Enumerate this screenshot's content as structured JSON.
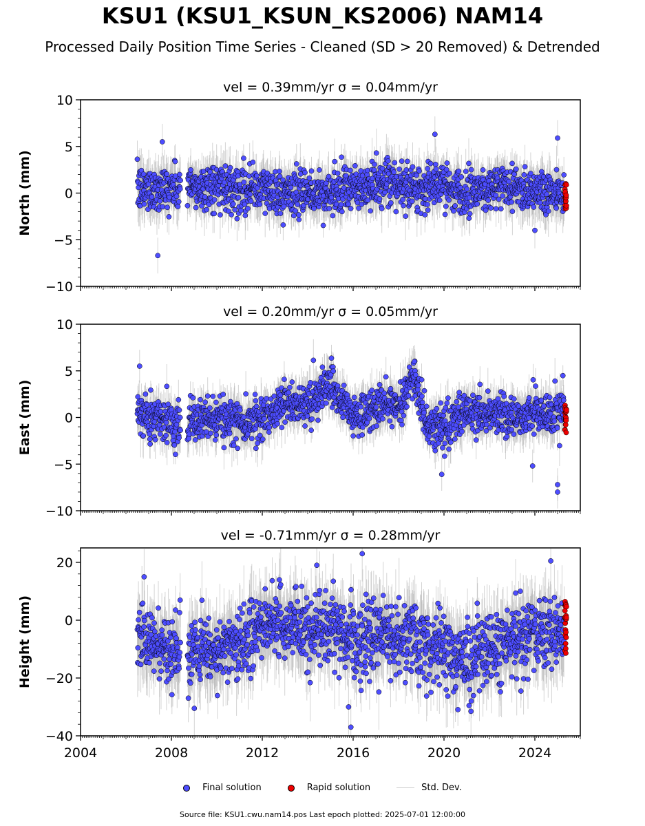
{
  "title": "KSU1 (KSU1_KSUN_KS2006) NAM14",
  "subtitle": "Processed Daily Position Time Series - Cleaned (SD > 20 Removed) & Detrended",
  "legend": {
    "final_label": "Final solution",
    "rapid_label": "Rapid solution",
    "std_label": "Std. Dev."
  },
  "footer": "Source file: KSU1.cwu.nam14.pos  Last epoch plotted: 2025-07-01 12:00:00",
  "colors": {
    "final": "#4d4dff",
    "rapid": "#ee0000",
    "std_dev": "#b0b0b0",
    "edge": "#000000"
  },
  "chart_data": [
    {
      "type": "scatter",
      "title": "vel = 0.39mm/yr   σ = 0.04mm/yr",
      "ylabel": "North (mm)",
      "xlabel": "",
      "xlim": [
        2004,
        2026
      ],
      "ylim": [
        -10,
        10
      ],
      "yticks": [
        -10,
        -5,
        0,
        5,
        10
      ],
      "xticks": [
        2004,
        2008,
        2012,
        2016,
        2020,
        2024
      ],
      "xtick_labels_shown": false,
      "data_span": [
        2006.5,
        2025.5
      ],
      "gap": [
        2008.4,
        2008.7
      ],
      "rapid_span": [
        2025.3,
        2025.5
      ],
      "series": [
        {
          "name": "Final solution",
          "trend_x": [
            2006.5,
            2007.5,
            2008.3,
            2009,
            2010,
            2011,
            2012,
            2013,
            2014,
            2015,
            2016,
            2017,
            2018,
            2019,
            2020,
            2021,
            2022,
            2023,
            2024,
            2025.3
          ],
          "trend_y": [
            0.3,
            0.6,
            0.5,
            0.5,
            0.8,
            0.6,
            0.4,
            0.0,
            -0.2,
            0.0,
            0.5,
            0.8,
            0.9,
            0.6,
            0.8,
            0.2,
            0.6,
            0.7,
            0.4,
            0.0
          ],
          "scatter_sd": 1.2,
          "outliers": [
            [
              2007.4,
              -6.7
            ],
            [
              2007.6,
              5.5
            ],
            [
              2019.6,
              6.3
            ],
            [
              2025.0,
              5.9
            ],
            [
              2024.0,
              -4.0
            ]
          ]
        },
        {
          "name": "Rapid solution",
          "x_range": [
            2025.3,
            2025.5
          ],
          "y_range": [
            -1.8,
            1.0
          ]
        }
      ]
    },
    {
      "type": "scatter",
      "title": "vel = 0.20mm/yr   σ = 0.05mm/yr",
      "ylabel": "East (mm)",
      "xlabel": "",
      "xlim": [
        2004,
        2026
      ],
      "ylim": [
        -10,
        10
      ],
      "yticks": [
        -10,
        -5,
        0,
        5,
        10
      ],
      "xticks": [
        2004,
        2008,
        2012,
        2016,
        2020,
        2024
      ],
      "xtick_labels_shown": false,
      "data_span": [
        2006.5,
        2025.5
      ],
      "gap": [
        2008.4,
        2008.7
      ],
      "rapid_span": [
        2025.3,
        2025.5
      ],
      "series": [
        {
          "name": "Final solution",
          "trend_x": [
            2006.5,
            2007.5,
            2008.3,
            2009,
            2010,
            2011,
            2012,
            2013,
            2014,
            2015,
            2015.7,
            2016,
            2017,
            2018,
            2018.7,
            2019.2,
            2020,
            2021,
            2022,
            2023,
            2024,
            2025.3
          ],
          "trend_y": [
            0.5,
            0.0,
            -0.5,
            -0.5,
            -0.2,
            -0.5,
            0.0,
            1.5,
            1.5,
            3.5,
            1.0,
            0.0,
            1.0,
            1.5,
            4.5,
            -1.0,
            -1.0,
            0.5,
            0.5,
            0.0,
            0.5,
            0.5
          ],
          "scatter_sd": 1.1,
          "outliers": [
            [
              2006.6,
              5.5
            ],
            [
              2018.7,
              6.0
            ],
            [
              2025.0,
              -8.0
            ],
            [
              2025.0,
              -7.2
            ],
            [
              2019.9,
              -6.1
            ],
            [
              2023.9,
              -5.2
            ]
          ]
        },
        {
          "name": "Rapid solution",
          "x_range": [
            2025.3,
            2025.5
          ],
          "y_range": [
            -1.8,
            1.4
          ]
        }
      ]
    },
    {
      "type": "scatter",
      "title": "vel = -0.71mm/yr   σ = 0.28mm/yr",
      "ylabel": "Height (mm)",
      "xlabel": "",
      "xlim": [
        2004,
        2026
      ],
      "ylim": [
        -40,
        25
      ],
      "yticks": [
        -40,
        -20,
        0,
        20
      ],
      "xticks": [
        2004,
        2008,
        2012,
        2016,
        2020,
        2024
      ],
      "xtick_labels": [
        "2004",
        "2008",
        "2012",
        "2016",
        "2020",
        "2024"
      ],
      "xtick_labels_shown": true,
      "data_span": [
        2006.5,
        2025.5
      ],
      "gap": [
        2008.4,
        2008.7
      ],
      "rapid_span": [
        2025.3,
        2025.5
      ],
      "series": [
        {
          "name": "Final solution",
          "trend_x": [
            2006.5,
            2007.5,
            2008.3,
            2009,
            2010,
            2011,
            2012,
            2013,
            2014,
            2015,
            2016,
            2017,
            2018,
            2019,
            2020,
            2021,
            2022,
            2023,
            2024,
            2025.3
          ],
          "trend_y": [
            -5,
            -10,
            -12,
            -12,
            -10,
            -8,
            -3,
            0,
            -5,
            -3,
            -7,
            -5,
            -5,
            -8,
            -10,
            -14,
            -10,
            -6,
            -5,
            -5
          ],
          "scatter_sd": 6.0,
          "outliers": [
            [
              2016.4,
              23
            ],
            [
              2015.9,
              -37
            ],
            [
              2015.8,
              -30
            ],
            [
              2024.7,
              20.5
            ],
            [
              2014.4,
              19
            ],
            [
              2006.8,
              15
            ]
          ]
        },
        {
          "name": "Rapid solution",
          "x_range": [
            2025.3,
            2025.5
          ],
          "y_range": [
            -13,
            7.5
          ]
        }
      ]
    }
  ]
}
